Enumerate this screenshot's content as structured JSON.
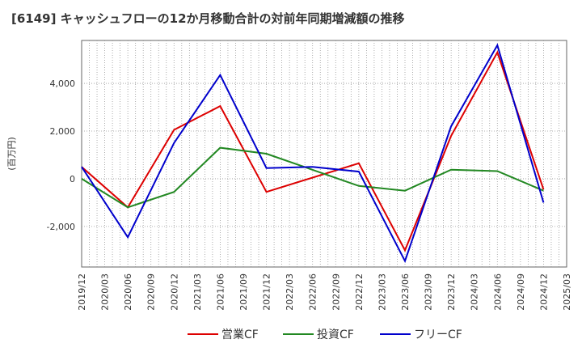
{
  "chart_data": {
    "type": "line",
    "title": "[6149]  キャッシュフローの12か月移動合計の対前年同期増減額の推移",
    "ylabel": "(百万円)",
    "xlabel": "",
    "x": [
      "2019/12",
      "2020/03",
      "2020/06",
      "2020/09",
      "2020/12",
      "2021/03",
      "2021/06",
      "2021/09",
      "2021/12",
      "2022/03",
      "2022/06",
      "2022/09",
      "2022/12",
      "2023/03",
      "2023/06",
      "2023/09",
      "2023/12",
      "2024/03",
      "2024/06",
      "2024/09",
      "2024/12",
      "2025/03"
    ],
    "ylim": [
      -3700,
      5800
    ],
    "yticks": [
      -2000,
      0,
      2000,
      4000
    ],
    "ytick_labels": [
      "-2,000",
      "0",
      "2,000",
      "4,000"
    ],
    "grid": true,
    "legend_position": "bottom",
    "series": [
      {
        "name": "営業CF",
        "color": "#dd0000",
        "points": [
          [
            0,
            500
          ],
          [
            2,
            -1200
          ],
          [
            4,
            2050
          ],
          [
            6,
            3050
          ],
          [
            8,
            -550
          ],
          [
            12,
            650
          ],
          [
            14,
            -3000
          ],
          [
            16,
            1800
          ],
          [
            18,
            5300
          ],
          [
            20,
            -450
          ]
        ]
      },
      {
        "name": "投資CF",
        "color": "#228822",
        "points": [
          [
            0,
            0
          ],
          [
            2,
            -1200
          ],
          [
            4,
            -550
          ],
          [
            6,
            1300
          ],
          [
            8,
            1050
          ],
          [
            12,
            -300
          ],
          [
            14,
            -500
          ],
          [
            16,
            380
          ],
          [
            18,
            320
          ],
          [
            20,
            -500
          ]
        ]
      },
      {
        "name": "フリーCF",
        "color": "#0000cc",
        "points": [
          [
            0,
            500
          ],
          [
            2,
            -2450
          ],
          [
            4,
            1500
          ],
          [
            6,
            4350
          ],
          [
            8,
            450
          ],
          [
            10,
            500
          ],
          [
            12,
            300
          ],
          [
            14,
            -3450
          ],
          [
            16,
            2200
          ],
          [
            18,
            5600
          ],
          [
            20,
            -1000
          ]
        ]
      }
    ]
  }
}
